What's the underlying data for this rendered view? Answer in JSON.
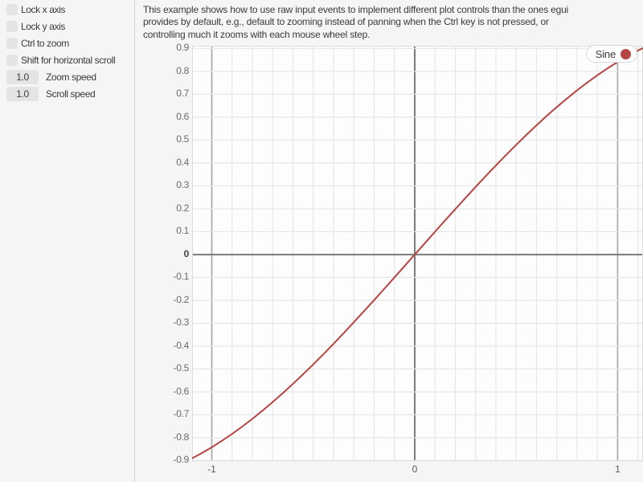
{
  "sidebar": {
    "checkboxes": [
      {
        "label": "Lock x axis",
        "checked": false
      },
      {
        "label": "Lock y axis",
        "checked": false
      },
      {
        "label": "Ctrl to zoom",
        "checked": false
      },
      {
        "label": "Shift for horizontal scroll",
        "checked": false
      }
    ],
    "drag_values": [
      {
        "value": "1.0",
        "label": "Zoom speed"
      },
      {
        "value": "1.0",
        "label": "Scroll speed"
      }
    ]
  },
  "main": {
    "description_lines": [
      "This example shows how to use raw input events to implement different plot controls than the ones egui",
      "provides by default, e.g., default to zooming instead of panning when the Ctrl key is not pressed, or",
      "controlling much it zooms with each mouse wheel step."
    ]
  },
  "chart_data": {
    "type": "line",
    "title": "",
    "xlabel": "",
    "ylabel": "",
    "xlim": [
      -1.097,
      1.125
    ],
    "ylim": [
      -0.902,
      0.912
    ],
    "grid_step": 0.1,
    "grid": true,
    "legend": {
      "label": "Sine",
      "position": "top-right"
    },
    "x_ticks": [
      {
        "v": -1,
        "label": "-1"
      },
      {
        "v": 0,
        "label": "0"
      },
      {
        "v": 1,
        "label": "1"
      }
    ],
    "y_ticks": [
      {
        "v": 0.9,
        "label": "0.9"
      },
      {
        "v": 0.8,
        "label": "0.8"
      },
      {
        "v": 0.7,
        "label": "0.7"
      },
      {
        "v": 0.6,
        "label": "0.6"
      },
      {
        "v": 0.5,
        "label": "0.5"
      },
      {
        "v": 0.4,
        "label": "0.4"
      },
      {
        "v": 0.3,
        "label": "0.3"
      },
      {
        "v": 0.2,
        "label": "0.2"
      },
      {
        "v": 0.1,
        "label": "0.1"
      },
      {
        "v": 0,
        "label": "0"
      },
      {
        "v": -0.1,
        "label": "-0.1"
      },
      {
        "v": -0.2,
        "label": "-0.2"
      },
      {
        "v": -0.3,
        "label": "-0.3"
      },
      {
        "v": -0.4,
        "label": "-0.4"
      },
      {
        "v": -0.5,
        "label": "-0.5"
      },
      {
        "v": -0.6,
        "label": "-0.6"
      },
      {
        "v": -0.7,
        "label": "-0.7"
      },
      {
        "v": -0.8,
        "label": "-0.8"
      },
      {
        "v": -0.9,
        "label": "-0.9"
      }
    ],
    "series": [
      {
        "name": "Sine",
        "color": "#b54444",
        "points": [
          [
            -1.1,
            -0.8912
          ],
          [
            -1.05,
            -0.8674
          ],
          [
            -1.0,
            -0.8415
          ],
          [
            -0.95,
            -0.8134
          ],
          [
            -0.9,
            -0.7833
          ],
          [
            -0.85,
            -0.7513
          ],
          [
            -0.8,
            -0.7174
          ],
          [
            -0.75,
            -0.6816
          ],
          [
            -0.7,
            -0.6442
          ],
          [
            -0.65,
            -0.6052
          ],
          [
            -0.6,
            -0.5646
          ],
          [
            -0.55,
            -0.5227
          ],
          [
            -0.5,
            -0.4794
          ],
          [
            -0.45,
            -0.435
          ],
          [
            -0.4,
            -0.3894
          ],
          [
            -0.35,
            -0.3429
          ],
          [
            -0.3,
            -0.2955
          ],
          [
            -0.25,
            -0.2474
          ],
          [
            -0.2,
            -0.1987
          ],
          [
            -0.15,
            -0.1494
          ],
          [
            -0.1,
            -0.0998
          ],
          [
            -0.05,
            -0.05
          ],
          [
            0,
            0
          ],
          [
            0.05,
            0.05
          ],
          [
            0.1,
            0.0998
          ],
          [
            0.15,
            0.1494
          ],
          [
            0.2,
            0.1987
          ],
          [
            0.25,
            0.2474
          ],
          [
            0.3,
            0.2955
          ],
          [
            0.35,
            0.3429
          ],
          [
            0.4,
            0.3894
          ],
          [
            0.45,
            0.435
          ],
          [
            0.5,
            0.4794
          ],
          [
            0.55,
            0.5227
          ],
          [
            0.6,
            0.5646
          ],
          [
            0.65,
            0.6052
          ],
          [
            0.7,
            0.6442
          ],
          [
            0.75,
            0.6816
          ],
          [
            0.8,
            0.7174
          ],
          [
            0.85,
            0.7513
          ],
          [
            0.9,
            0.7833
          ],
          [
            0.95,
            0.8134
          ],
          [
            1.0,
            0.8415
          ],
          [
            1.05,
            0.8674
          ],
          [
            1.1,
            0.8912
          ],
          [
            1.15,
            0.9128
          ]
        ]
      }
    ],
    "colors": {
      "line": "#b54444",
      "axis": "#7b7b7b",
      "grid": "#e7e7e7",
      "grid_emphasis": "#a5a5a5",
      "plot_bg": "#fdfdfd",
      "page_bg": "#f5f5f5",
      "frame": "#dcdcdc"
    }
  }
}
